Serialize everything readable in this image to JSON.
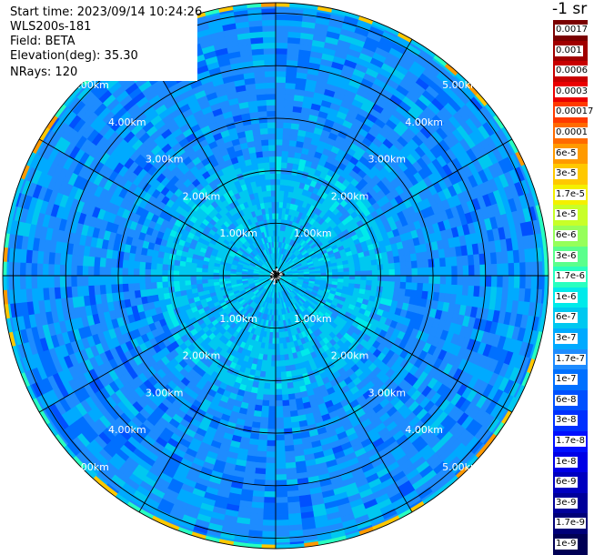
{
  "header": {
    "start_time": "Start time: 2023/09/14 10:24:26",
    "instrument": "WLS200s-181",
    "field": "Field: BETA",
    "elevation": "Elevation(deg): 35.30",
    "nrays": "NRays: 120"
  },
  "range_rings": {
    "labels": [
      "1.00km",
      "2.00km",
      "3.00km",
      "4.00km",
      "5.00km"
    ],
    "max_range_km": 5.2
  },
  "colorbar": {
    "unit_label": "-1 sr",
    "entries": [
      {
        "label": "0.0017",
        "color": "#7a0000",
        "text": "#ffffff"
      },
      {
        "label": "0.001",
        "color": "#a00000",
        "text": "#ffffff"
      },
      {
        "label": "0.0006",
        "color": "#c80000",
        "text": "#ffffff"
      },
      {
        "label": "0.0003",
        "color": "#ea0000",
        "text": "#ffffff"
      },
      {
        "label": "0.00017",
        "color": "#ff3a00",
        "text": "#ffffff"
      },
      {
        "label": "0.0001",
        "color": "#ff6a00",
        "text": "#ffffff"
      },
      {
        "label": "6e-5",
        "color": "#ff9a00",
        "text": "#ffffff"
      },
      {
        "label": "3e-5",
        "color": "#ffc800",
        "text": "#ffffff"
      },
      {
        "label": "1.7e-5",
        "color": "#f4f000",
        "text": "#ffffff"
      },
      {
        "label": "1e-5",
        "color": "#c8ff28",
        "text": "#ffffff"
      },
      {
        "label": "6e-6",
        "color": "#96ff5a",
        "text": "#ffffff"
      },
      {
        "label": "3e-6",
        "color": "#5aff8c",
        "text": "#ffffff"
      },
      {
        "label": "1.7e-6",
        "color": "#28ffc0",
        "text": "#ffffff"
      },
      {
        "label": "1e-6",
        "color": "#00eaea",
        "text": "#ffffff"
      },
      {
        "label": "6e-7",
        "color": "#00c8f0",
        "text": "#ffffff"
      },
      {
        "label": "3e-7",
        "color": "#00aaff",
        "text": "#ffffff"
      },
      {
        "label": "1.7e-7",
        "color": "#1e8cff",
        "text": "#ffffff"
      },
      {
        "label": "1e-7",
        "color": "#0070ff",
        "text": "#ffffff"
      },
      {
        "label": "6e-8",
        "color": "#0050ff",
        "text": "#ffffff"
      },
      {
        "label": "3e-8",
        "color": "#0030ff",
        "text": "#ffffff"
      },
      {
        "label": "1.7e-8",
        "color": "#0010ff",
        "text": "#ffffff"
      },
      {
        "label": "1e-8",
        "color": "#0000e6",
        "text": "#ffffff"
      },
      {
        "label": "6e-9",
        "color": "#0000c0",
        "text": "#ffffff"
      },
      {
        "label": "3e-9",
        "color": "#00009a",
        "text": "#ffffff"
      },
      {
        "label": "1.7e-9",
        "color": "#000078",
        "text": "#ffffff"
      },
      {
        "label": "1e-9",
        "color": "#000055",
        "text": "#ffffff"
      }
    ]
  },
  "colors": {
    "background": "#ffffff",
    "grid": "#000000",
    "ring_label": "#ffffff"
  }
}
